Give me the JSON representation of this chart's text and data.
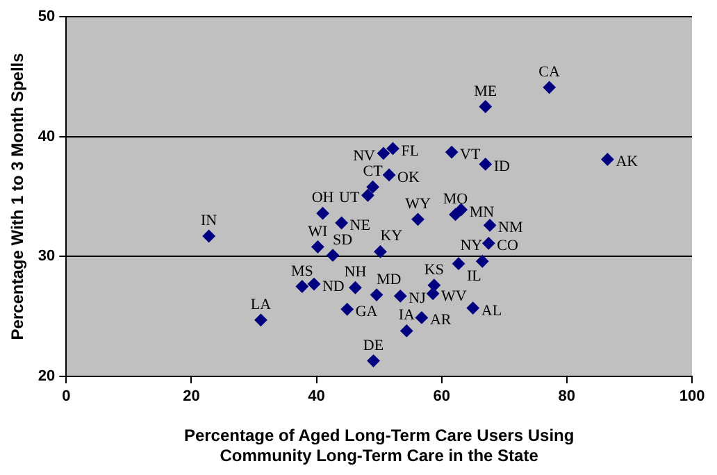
{
  "chart_data": {
    "type": "scatter",
    "xlabel": "Percentage of Aged Long-Term Care Users Using Community Long-Term Care in the State",
    "ylabel": "Percentage With 1 to 3 Month Spells",
    "xlim": [
      0,
      100
    ],
    "xticks": [
      0,
      20,
      40,
      60,
      80,
      100
    ],
    "ylim": [
      20,
      50
    ],
    "yticks": [
      20,
      30,
      40,
      50
    ],
    "grid": "y",
    "legend": false,
    "marker": "diamond",
    "series": [
      {
        "color": "#000080",
        "x": [
          22.8,
          31.1,
          37.7,
          39.6,
          40.2,
          41.0,
          42.6,
          44.0,
          44.9,
          46.2,
          48.2,
          49.0,
          49.1,
          49.6,
          50.7,
          50.2,
          52.2,
          51.6,
          53.4,
          54.4,
          56.2,
          56.8,
          58.6,
          58.8,
          61.6,
          62.2,
          63.1,
          62.7,
          65.0,
          66.5,
          67.0,
          67.0,
          67.7,
          67.5,
          77.2,
          86.5
        ],
        "values": [
          31.7,
          24.7,
          27.5,
          27.7,
          30.8,
          33.6,
          30.1,
          32.8,
          25.6,
          27.4,
          35.1,
          35.8,
          21.3,
          26.8,
          38.6,
          30.4,
          39.0,
          36.8,
          26.7,
          23.8,
          33.1,
          24.9,
          26.9,
          27.6,
          38.7,
          33.5,
          33.9,
          29.4,
          25.7,
          29.6,
          42.5,
          37.7,
          32.6,
          31.1,
          44.1,
          38.1
        ],
        "value_labels": [
          "IN",
          "LA",
          "MS",
          "ND",
          "WI",
          "OH",
          "SD",
          "NE",
          "GA",
          "NH",
          "UT",
          "CT",
          "DE",
          "MD",
          "NV",
          "KY",
          "FL",
          "OK",
          "NJ",
          "IA",
          "WY",
          "AR",
          "WV",
          "KS",
          "VT",
          "MO",
          "MN",
          "IL",
          "AL",
          "NY",
          "ME",
          "ID",
          "NM",
          "CO",
          "CA",
          "AK"
        ]
      }
    ]
  }
}
